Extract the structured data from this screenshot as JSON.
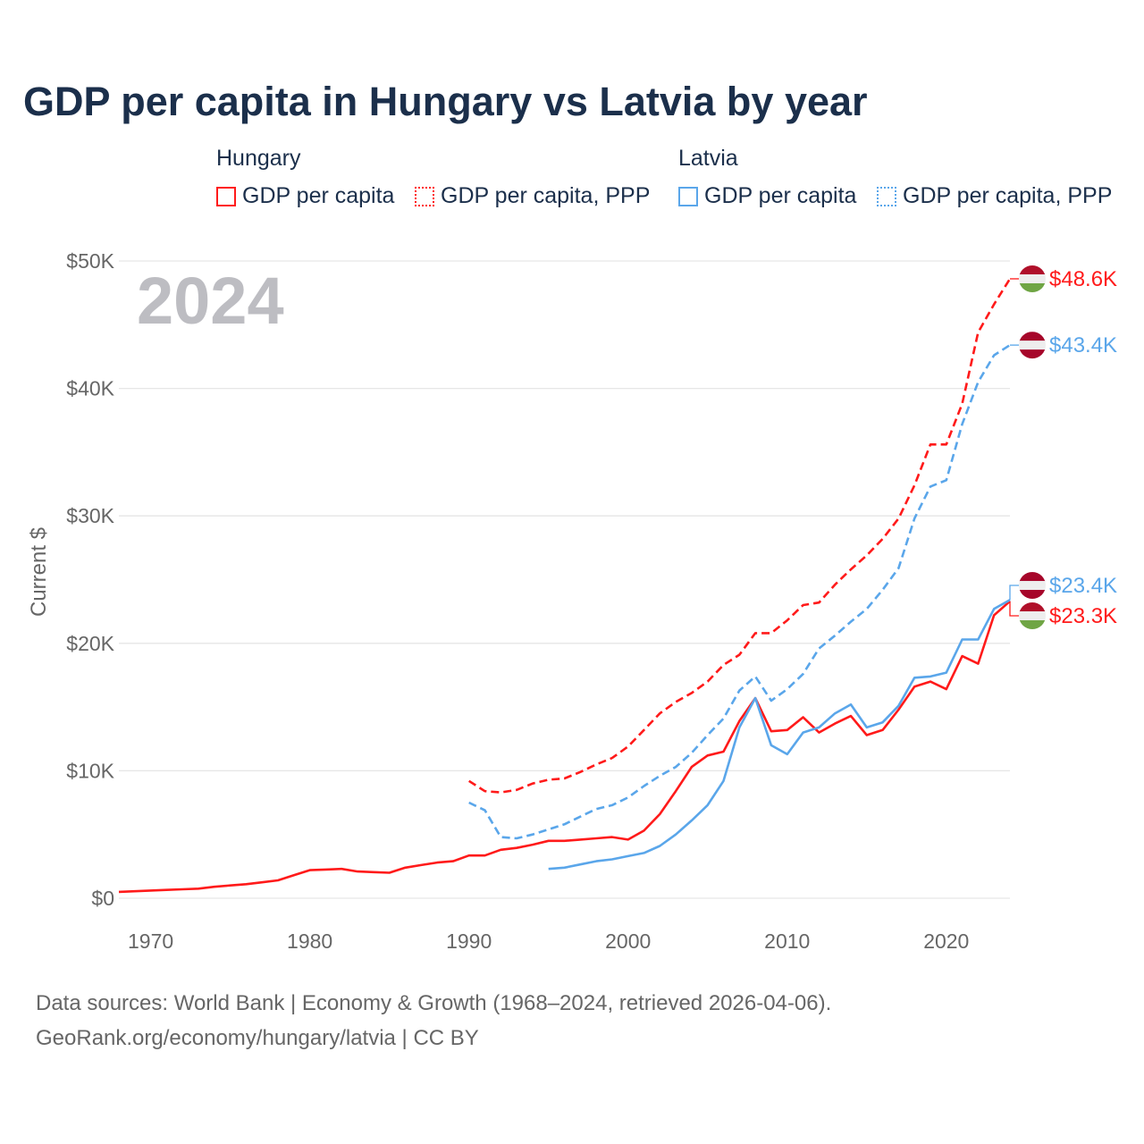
{
  "chart_data": {
    "type": "line",
    "title": "GDP per capita in Hungary vs Latvia by year",
    "year_label": "2024",
    "ylabel": "Current $",
    "xlabel": "",
    "xlim": [
      1968,
      2024
    ],
    "ylim": [
      0,
      50000
    ],
    "x_ticks": [
      1970,
      1980,
      1990,
      2000,
      2010,
      2020
    ],
    "y_ticks": [
      {
        "v": 0,
        "label": "$0"
      },
      {
        "v": 10000,
        "label": "$10K"
      },
      {
        "v": 20000,
        "label": "$20K"
      },
      {
        "v": 30000,
        "label": "$30K"
      },
      {
        "v": 40000,
        "label": "$40K"
      },
      {
        "v": 50000,
        "label": "$50K"
      }
    ],
    "grid": true,
    "legend": {
      "groups": [
        {
          "name": "Hungary",
          "items": [
            "GDP per capita",
            "GDP per capita, PPP"
          ]
        },
        {
          "name": "Latvia",
          "items": [
            "GDP per capita",
            "GDP per capita, PPP"
          ]
        }
      ],
      "placement": "top"
    },
    "series": [
      {
        "name": "Hungary GDP per capita",
        "country": "Hungary",
        "color": "#ff1a1a",
        "dashed": false,
        "start": 1968,
        "end_label": "$23.3K",
        "values": [
          500,
          550,
          600,
          650,
          700,
          750,
          900,
          1000,
          1100,
          1250,
          1400,
          1800,
          2200,
          2250,
          2300,
          2100,
          2050,
          2000,
          2400,
          2600,
          2800,
          2900,
          3350,
          3350,
          3800,
          3950,
          4200,
          4500,
          4500,
          4600,
          4700,
          4800,
          4600,
          5300,
          6600,
          8400,
          10300,
          11200,
          11500,
          13900,
          15700,
          13100,
          13200,
          14200,
          13000,
          13700,
          14300,
          12800,
          13200,
          14800,
          16600,
          17000,
          16400,
          19000,
          18400,
          22200,
          23300
        ]
      },
      {
        "name": "Hungary GDP per capita, PPP",
        "country": "Hungary",
        "color": "#ff1a1a",
        "dashed": true,
        "start": 1990,
        "end_label": "$48.6K",
        "values": [
          9200,
          8400,
          8300,
          8500,
          9000,
          9300,
          9400,
          9900,
          10500,
          11000,
          11900,
          13200,
          14500,
          15400,
          16100,
          17000,
          18300,
          19100,
          20800,
          20800,
          21800,
          23000,
          23200,
          24600,
          25800,
          26900,
          28200,
          29800,
          32400,
          35600,
          35600,
          38800,
          44400,
          46600,
          48600
        ]
      },
      {
        "name": "Latvia GDP per capita",
        "country": "Latvia",
        "color": "#5aa6ea",
        "dashed": false,
        "start": 1995,
        "end_label": "$23.4K",
        "values": [
          2300,
          2400,
          2650,
          2900,
          3050,
          3300,
          3550,
          4100,
          5000,
          6100,
          7300,
          9200,
          13400,
          15700,
          12000,
          11300,
          13000,
          13400,
          14500,
          15200,
          13400,
          13800,
          15100,
          17300,
          17400,
          17700,
          20300,
          20300,
          22700,
          23400
        ]
      },
      {
        "name": "Latvia GDP per capita, PPP",
        "country": "Latvia",
        "color": "#5aa6ea",
        "dashed": true,
        "start": 1990,
        "end_label": "$43.4K",
        "values": [
          7500,
          6900,
          4800,
          4700,
          5000,
          5400,
          5800,
          6400,
          7000,
          7300,
          7900,
          8800,
          9600,
          10300,
          11400,
          12800,
          14100,
          16300,
          17400,
          15500,
          16400,
          17600,
          19600,
          20600,
          21700,
          22700,
          24200,
          25900,
          29800,
          32300,
          32800,
          37200,
          40500,
          42600,
          43400
        ]
      }
    ],
    "flag_colors": {
      "Hungary": [
        "#b0102a",
        "#eeeeee",
        "#6fa544"
      ],
      "Latvia": [
        "#a6062a",
        "#eeeeee",
        "#a6062a"
      ]
    }
  },
  "footer": {
    "line1": "Data sources: World Bank | Economy & Growth (1968–2024, retrieved 2026-04-06).",
    "line2": "GeoRank.org/economy/hungary/latvia | CC BY"
  }
}
